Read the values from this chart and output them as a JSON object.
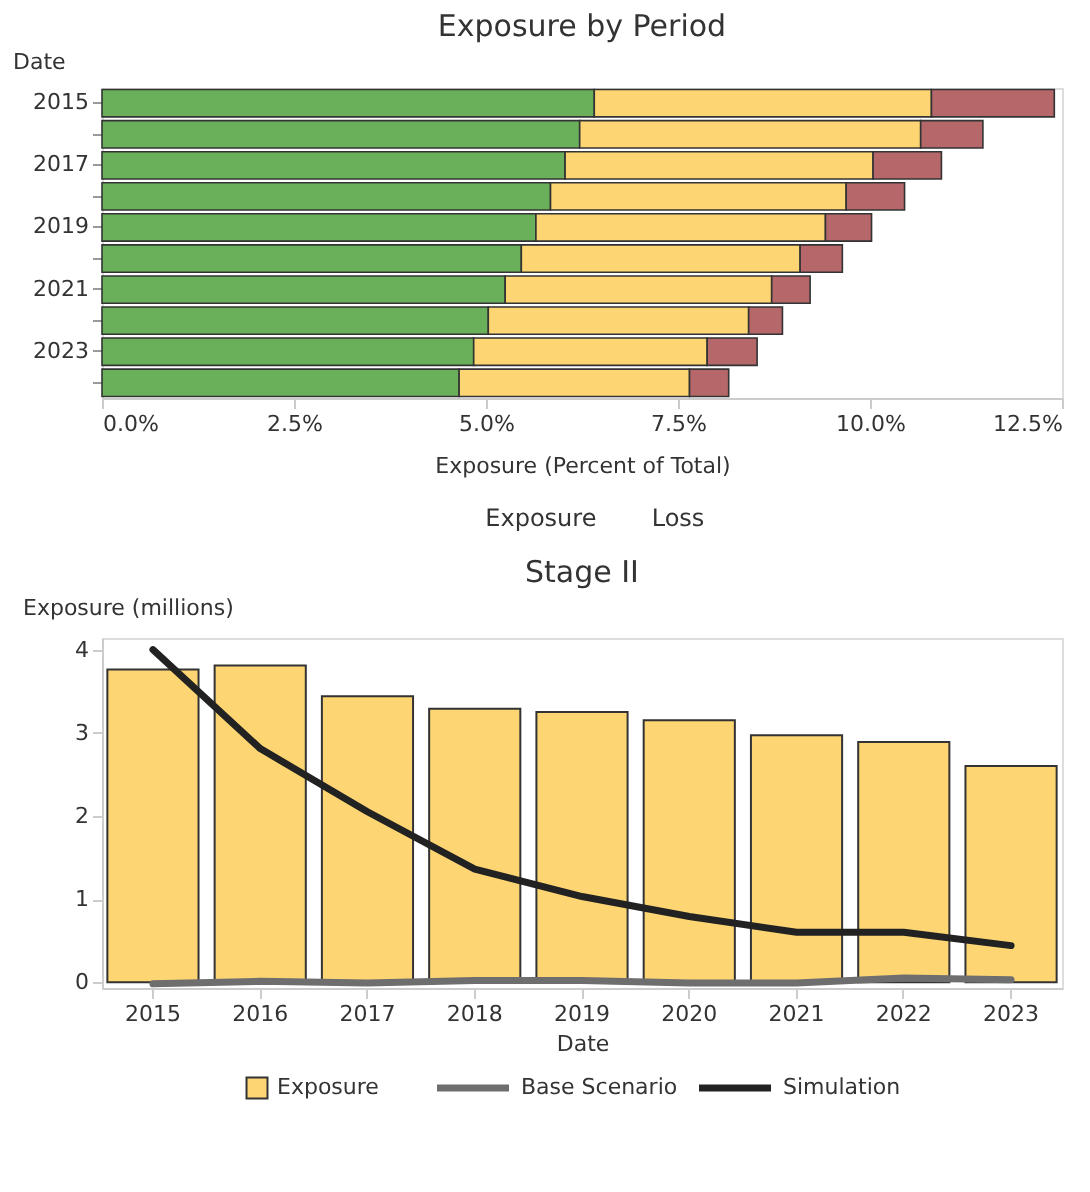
{
  "chart_data": [
    {
      "type": "bar",
      "title": "Exposure by Period",
      "orientation": "horizontal",
      "stacked": true,
      "categories": [
        "2015",
        null,
        "2017",
        null,
        "2019",
        null,
        "2021",
        null,
        "2023",
        null
      ],
      "series": [
        {
          "color": "#6ab05a",
          "values": [
            6.41,
            6.22,
            6.03,
            5.84,
            5.65,
            5.46,
            5.25,
            5.03,
            4.84,
            4.65
          ]
        },
        {
          "color": "#fdd673",
          "values": [
            4.39,
            4.44,
            4.01,
            3.85,
            3.77,
            3.63,
            3.47,
            3.39,
            3.04,
            3.0
          ]
        },
        {
          "color": "#b5676a",
          "values": [
            1.6,
            0.81,
            0.89,
            0.76,
            0.6,
            0.55,
            0.5,
            0.44,
            0.65,
            0.51
          ]
        }
      ],
      "xlabel": "Exposure (Percent of Total)",
      "ylabel": "Date",
      "xlim": [
        0,
        12.5
      ],
      "xticks": [
        {
          "value": 0,
          "label": "0.0%"
        },
        {
          "value": 2.5,
          "label": "2.5%"
        },
        {
          "value": 5,
          "label": "5.0%"
        },
        {
          "value": 7.5,
          "label": "7.5%"
        },
        {
          "value": 10,
          "label": "10.0%"
        },
        {
          "value": 12.5,
          "label": "12.5%"
        }
      ],
      "annotations": [
        "Exposure",
        "Loss"
      ]
    },
    {
      "type": "bar",
      "title": "Stage II",
      "legend": "bottom",
      "categories": [
        "2015",
        "2016",
        "2017",
        "2018",
        "2019",
        "2020",
        "2021",
        "2022",
        "2023"
      ],
      "series": [
        {
          "name": "Exposure",
          "type": "bar",
          "color": "#fdd673",
          "values": [
            3.76,
            3.81,
            3.44,
            3.29,
            3.25,
            3.15,
            2.97,
            2.89,
            2.6
          ]
        },
        {
          "name": "Base Scenario",
          "type": "line",
          "color": "#6e6e6e",
          "values": [
            -0.02,
            0.01,
            -0.01,
            0.02,
            0.02,
            -0.01,
            -0.01,
            0.05,
            0.03
          ]
        },
        {
          "name": "Simulation",
          "type": "line",
          "color": "#222222",
          "values": [
            4.0,
            2.81,
            2.05,
            1.36,
            1.03,
            0.79,
            0.6,
            0.6,
            0.44
          ]
        }
      ],
      "xlabel": "Date",
      "ylabel": "Exposure (millions)",
      "ylim": [
        -0.07,
        4.14
      ],
      "yticks": [
        0,
        1,
        2,
        3,
        4
      ]
    }
  ]
}
